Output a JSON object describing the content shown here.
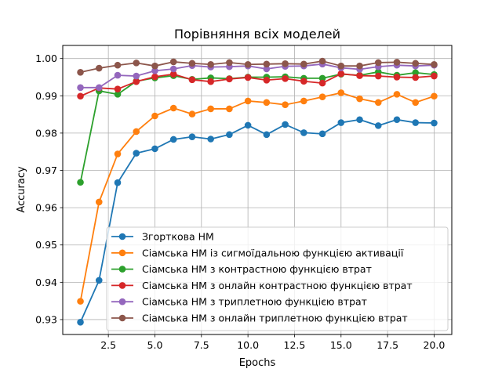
{
  "chart_data": {
    "type": "line",
    "title": "Порівняння всіх моделей",
    "xlabel": "Epochs",
    "ylabel": "Accuracy",
    "xlim": [
      0.05,
      20.95
    ],
    "ylim": [
      0.926,
      1.0035
    ],
    "xticks": [
      2.5,
      5.0,
      7.5,
      10.0,
      12.5,
      15.0,
      17.5,
      20.0
    ],
    "xtick_labels": [
      "2.5",
      "5.0",
      "7.5",
      "10.0",
      "12.5",
      "15.0",
      "17.5",
      "20.0"
    ],
    "yticks": [
      0.93,
      0.94,
      0.95,
      0.96,
      0.97,
      0.98,
      0.99,
      1.0
    ],
    "ytick_labels": [
      "0.93",
      "0.94",
      "0.95",
      "0.96",
      "0.97",
      "0.98",
      "0.99",
      "1.00"
    ],
    "grid": true,
    "legend_position": "lower-right",
    "x": [
      1,
      2,
      3,
      4,
      5,
      6,
      7,
      8,
      9,
      10,
      11,
      12,
      13,
      14,
      15,
      16,
      17,
      18,
      19,
      20
    ],
    "series": [
      {
        "name": "Згорткова НМ",
        "color": "#1f77b4",
        "values": [
          0.9293,
          0.9405,
          0.9667,
          0.9746,
          0.9758,
          0.9783,
          0.979,
          0.9784,
          0.9796,
          0.9821,
          0.9796,
          0.9823,
          0.9801,
          0.9798,
          0.9828,
          0.9836,
          0.982,
          0.9836,
          0.9828,
          0.9827
        ]
      },
      {
        "name": "Сіамська НМ із сигмоїдальною функцією активації",
        "color": "#ff7f0e",
        "values": [
          0.9349,
          0.9615,
          0.9744,
          0.9804,
          0.9846,
          0.9867,
          0.9851,
          0.9865,
          0.9865,
          0.9886,
          0.9882,
          0.9876,
          0.9886,
          0.9897,
          0.9908,
          0.9892,
          0.9882,
          0.9904,
          0.9882,
          0.9899
        ]
      },
      {
        "name": "Сіамська НМ з контрастною функцією втрат",
        "color": "#2ca02c",
        "values": [
          0.9668,
          0.9913,
          0.9904,
          0.9939,
          0.9948,
          0.9954,
          0.9944,
          0.9948,
          0.9946,
          0.995,
          0.995,
          0.9951,
          0.9947,
          0.9947,
          0.9958,
          0.9955,
          0.9964,
          0.9955,
          0.9962,
          0.9957
        ]
      },
      {
        "name": "Сіамська НМ з онлайн контрастною функцією втрат",
        "color": "#d62728",
        "values": [
          0.9899,
          0.9921,
          0.9918,
          0.9938,
          0.9951,
          0.9958,
          0.9943,
          0.9938,
          0.9945,
          0.9949,
          0.9942,
          0.9946,
          0.9939,
          0.9934,
          0.9959,
          0.9954,
          0.9953,
          0.995,
          0.9949,
          0.9953
        ]
      },
      {
        "name": "Сіамська НМ з триплетною функцією втрат",
        "color": "#9467bd",
        "values": [
          0.9922,
          0.9922,
          0.9955,
          0.9953,
          0.9967,
          0.9972,
          0.9981,
          0.9977,
          0.9978,
          0.998,
          0.9972,
          0.9979,
          0.998,
          0.9985,
          0.9975,
          0.9971,
          0.9978,
          0.9982,
          0.998,
          0.9982
        ]
      },
      {
        "name": "Сіамська НМ з онлайн триплетною функцією втрат",
        "color": "#8c564b",
        "values": [
          0.9963,
          0.9974,
          0.9982,
          0.9988,
          0.998,
          0.9991,
          0.9987,
          0.9984,
          0.9989,
          0.9984,
          0.9985,
          0.9986,
          0.9985,
          0.9993,
          0.998,
          0.998,
          0.9989,
          0.999,
          0.9987,
          0.9984
        ]
      }
    ]
  }
}
